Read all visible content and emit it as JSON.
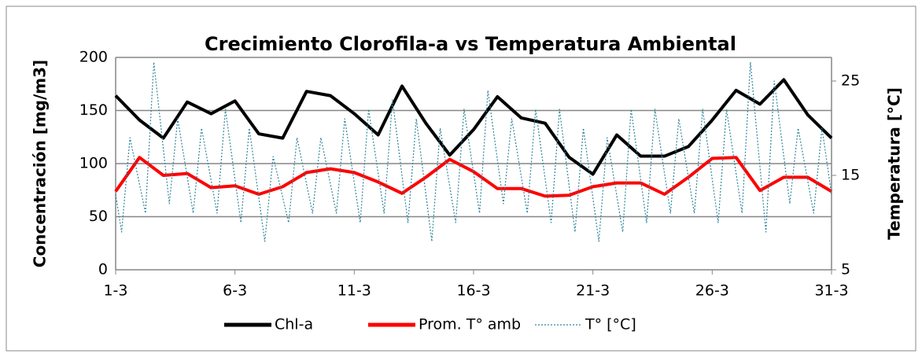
{
  "chart_data": {
    "type": "line",
    "title": "Crecimiento Clorofila-a vs Temperatura Ambiental",
    "y_label": "Concentración [mg/m3]",
    "y2_label": "Temperatura [°C]",
    "x": [
      1,
      2,
      3,
      4,
      5,
      6,
      7,
      8,
      9,
      10,
      11,
      12,
      13,
      14,
      15,
      16,
      17,
      18,
      19,
      20,
      21,
      22,
      23,
      24,
      25,
      26,
      27,
      28,
      29,
      30,
      31
    ],
    "xlim": [
      1,
      31
    ],
    "xticks": [
      {
        "value": 1,
        "label": "1-3"
      },
      {
        "value": 6,
        "label": "6-3"
      },
      {
        "value": 11,
        "label": "11-3"
      },
      {
        "value": 16,
        "label": "16-3"
      },
      {
        "value": 21,
        "label": "21-3"
      },
      {
        "value": 26,
        "label": "26-3"
      },
      {
        "value": 31,
        "label": "31-3"
      }
    ],
    "ylim": [
      0,
      200
    ],
    "yticks": [
      0,
      50,
      100,
      150,
      200
    ],
    "y2lim": [
      5,
      27.5
    ],
    "y2ticks": [
      5,
      15,
      25
    ],
    "grid": true,
    "series": [
      {
        "name": "Chl-a",
        "color": "#000000",
        "values": [
          164,
          141,
          124,
          158,
          147,
          159,
          128,
          124,
          168,
          164,
          147,
          127,
          173,
          138,
          108,
          132,
          163,
          143,
          138,
          106,
          90,
          127,
          107,
          107,
          116,
          141,
          169,
          156,
          179,
          146,
          124
        ]
      },
      {
        "name": "Prom. T° amb",
        "color": "#ff0000",
        "axis": "y2",
        "values": [
          13.3,
          16.9,
          15,
          15.2,
          13.7,
          13.9,
          13,
          13.8,
          15.3,
          15.7,
          15.3,
          14.3,
          13.1,
          14.8,
          16.7,
          15.4,
          13.6,
          13.6,
          12.8,
          12.9,
          13.8,
          14.2,
          14.2,
          13,
          14.8,
          16.8,
          16.9,
          13.4,
          14.8,
          14.8,
          13.3
        ]
      },
      {
        "name": "T° [°C]",
        "color": "#31859c",
        "axis": "y2",
        "dashed": true,
        "x": [
          1,
          1.25,
          1.6,
          2.25,
          2.6,
          3.25,
          3.6,
          4.25,
          4.6,
          5.25,
          5.6,
          6.25,
          6.6,
          7.25,
          7.6,
          8.25,
          8.6,
          9.25,
          9.6,
          10.25,
          10.6,
          11.25,
          11.6,
          12.25,
          12.6,
          13.25,
          13.6,
          14.25,
          14.6,
          15.25,
          15.6,
          16.25,
          16.6,
          17.25,
          17.6,
          18.25,
          18.6,
          19.25,
          19.6,
          20.25,
          20.6,
          21.25,
          21.6,
          22.25,
          22.6,
          23.25,
          23.6,
          24.25,
          24.6,
          25.25,
          25.6,
          26.25,
          26.6,
          27.25,
          27.6,
          28.25,
          28.6,
          29.25,
          29.6,
          30.25,
          30.6,
          31
        ],
        "values": [
          13,
          9,
          19,
          11,
          27,
          12,
          21,
          11,
          20,
          11,
          22,
          10,
          20,
          8,
          17,
          10,
          19,
          11,
          19,
          11,
          21,
          10,
          22,
          11,
          23,
          10,
          21,
          8,
          20,
          10,
          22,
          11,
          24,
          12,
          21,
          11,
          22,
          10,
          22,
          9,
          20,
          8,
          19,
          9,
          22,
          10,
          22,
          11,
          21,
          11,
          22,
          10,
          22,
          11,
          27,
          9,
          25,
          12,
          20,
          11,
          20,
          13
        ]
      }
    ],
    "legend": "bottom"
  }
}
